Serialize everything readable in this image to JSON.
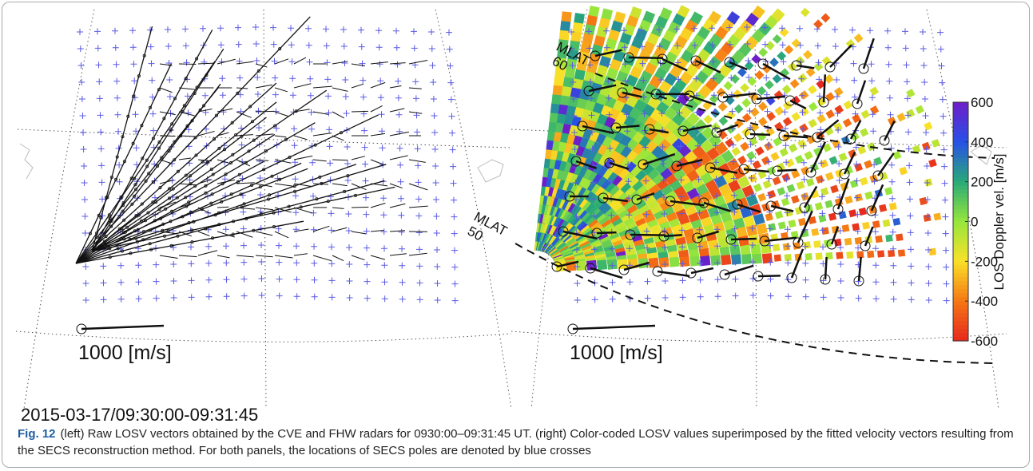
{
  "figure": {
    "left_panel": {
      "scale_label": "1000 [m/s]"
    },
    "right_panel": {
      "scale_label": "1000 [m/s]",
      "mlat_60": {
        "name": "MLAT",
        "value": "60"
      },
      "mlat_50": {
        "name": "MLAT",
        "value": "50"
      }
    },
    "colorbar": {
      "label": "LOS Doppler vel. [m/s]",
      "lim": [
        -600,
        600
      ],
      "ticks": [
        600,
        400,
        200,
        0,
        -200,
        -400,
        -600
      ]
    },
    "timestamp": "2015-03-17/09:30:00-09:31:45"
  },
  "caption": {
    "label": "Fig. 12",
    "text": "(left) Raw LOSV vectors obtained by the CVE and FHW radars for 0930:00–09:31:45 UT. (right) Color-coded LOSV values superimposed by the fitted velocity vectors resulting from the SECS reconstruction method. For both panels, the locations of SECS poles are denoted by blue crosses"
  }
}
